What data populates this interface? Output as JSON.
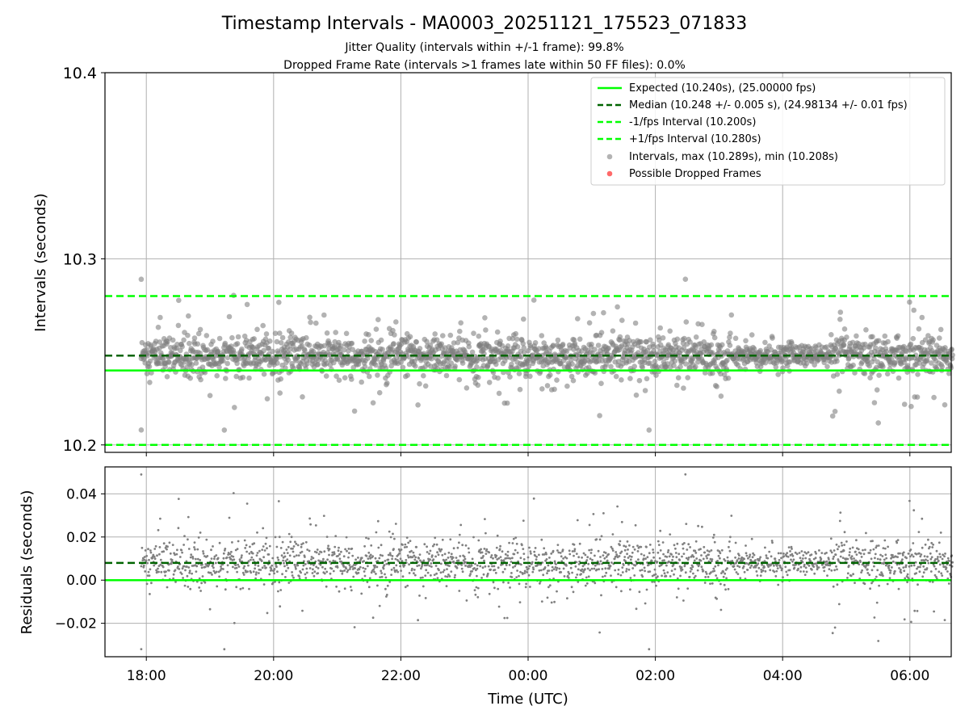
{
  "chart_data": [
    {
      "type": "scatter",
      "title": "Timestamp Intervals - MA0003_20251121_175523_071833",
      "subtitle_1": "Jitter Quality (intervals within +/-1 frame): 99.8%",
      "subtitle_2": "Dropped Frame Rate (intervals >1 frames late within 50 FF files): 0.0%",
      "ylabel": "Intervals (seconds)",
      "ylim": [
        10.196,
        10.4
      ],
      "yticks": [
        "10.2",
        "10.3",
        "10.4"
      ],
      "xlim_hours": [
        17.35,
        30.65
      ],
      "grid": true,
      "legend_position": "top-right",
      "legend": [
        "Expected (10.240s), (25.00000 fps)",
        "Median (10.248 +/- 0.005 s), (24.98134 +/- 0.01 fps)",
        "-1/fps Interval (10.200s)",
        "+1/fps Interval (10.280s)",
        "Intervals, max (10.289s), min (10.208s)",
        "Possible Dropped Frames"
      ],
      "reference_lines": {
        "expected": 10.24,
        "median": 10.248,
        "minus_1fps": 10.2,
        "plus_1fps": 10.28
      },
      "series": [
        {
          "name": "Intervals",
          "summary": {
            "max": 10.289,
            "min": 10.208,
            "median": 10.248,
            "std": 0.005
          },
          "x_range_hours": [
            17.92,
            30.67
          ]
        },
        {
          "name": "Possible Dropped Frames",
          "count": 0
        }
      ]
    },
    {
      "type": "scatter",
      "ylabel": "Residuals (seconds)",
      "xlabel": "Time (UTC)",
      "ylim": [
        -0.0355,
        0.0525
      ],
      "yticks": [
        "−0.02",
        "0.00",
        "0.02",
        "0.04"
      ],
      "xlim_hours": [
        17.35,
        30.65
      ],
      "xtick_hours": [
        18,
        20,
        22,
        24,
        26,
        28,
        30
      ],
      "xticks": [
        "18:00",
        "20:00",
        "22:00",
        "00:00",
        "02:00",
        "04:00",
        "06:00"
      ],
      "grid": true,
      "reference_lines": {
        "zero": 0.0,
        "median_residual": 0.008
      },
      "series": [
        {
          "name": "Residuals",
          "summary": {
            "max": 0.049,
            "min": -0.032,
            "median": 0.008
          }
        }
      ]
    }
  ],
  "colors": {
    "expected": "#00ff00",
    "median": "#006400",
    "interval_lines": "#00ff00",
    "points": "#808080",
    "dropped": "#ff4444",
    "grid": "#b0b0b0"
  }
}
